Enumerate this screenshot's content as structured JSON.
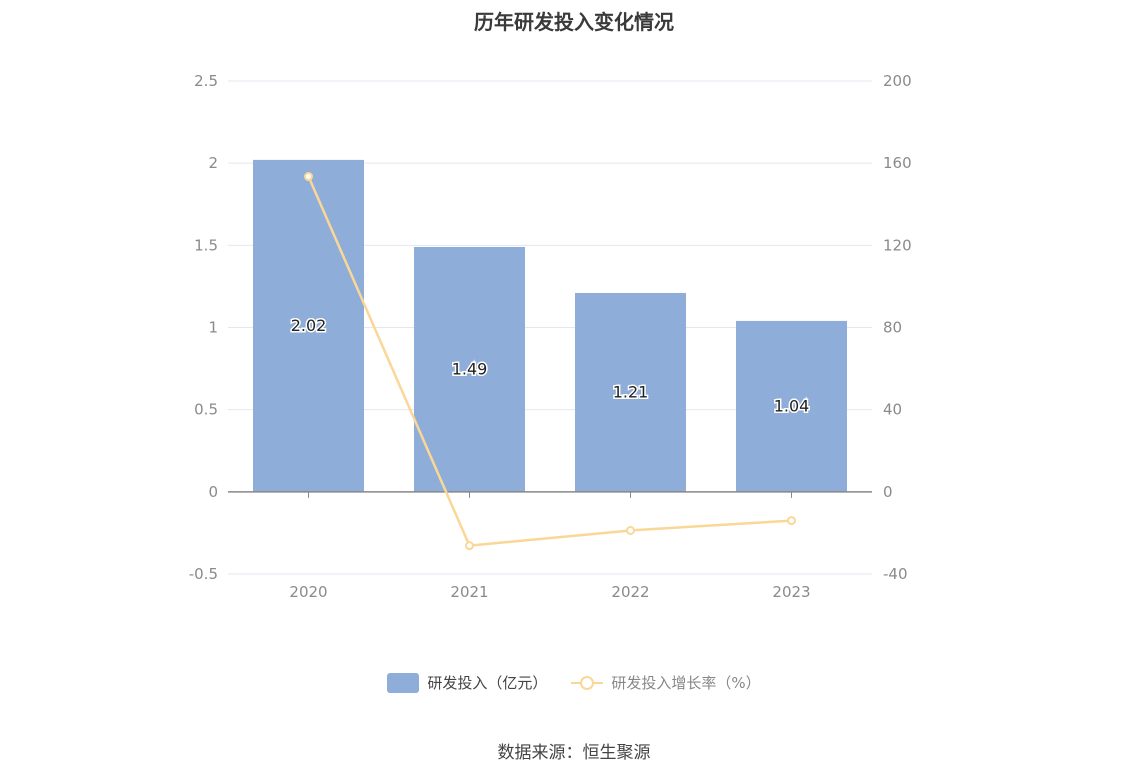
{
  "title": "历年研发投入变化情况",
  "source": "数据来源：恒生聚源",
  "legend": {
    "bar_label": "研发投入（亿元）",
    "line_label": "研发投入增长率（%）"
  },
  "colors": {
    "bar": "#8eadd9",
    "line": "#fad797",
    "grid": "#e3e7f0",
    "axis": "#888888",
    "tick_text": "#8a8a8a"
  },
  "chart_data": {
    "type": "bar",
    "categories": [
      "2020",
      "2021",
      "2022",
      "2023"
    ],
    "series": [
      {
        "name": "研发投入（亿元）",
        "type": "bar",
        "axis": "left",
        "values": [
          2.02,
          1.49,
          1.21,
          1.04
        ],
        "labels": [
          "2.02",
          "1.49",
          "1.21",
          "1.04"
        ]
      },
      {
        "name": "研发投入增长率（%）",
        "type": "line",
        "axis": "right",
        "values": [
          153.5,
          -26.2,
          -18.8,
          -14.0
        ]
      }
    ],
    "y_left": {
      "ticks": [
        "2.5",
        "2",
        "1.5",
        "1",
        "0.5",
        "0",
        "-0.5"
      ],
      "ylim": [
        -0.5,
        2.5
      ]
    },
    "y_right": {
      "ticks": [
        "200",
        "160",
        "120",
        "80",
        "40",
        "0",
        "-40"
      ],
      "ylim": [
        -40,
        200
      ]
    },
    "grid": true,
    "legend_position": "bottom"
  }
}
